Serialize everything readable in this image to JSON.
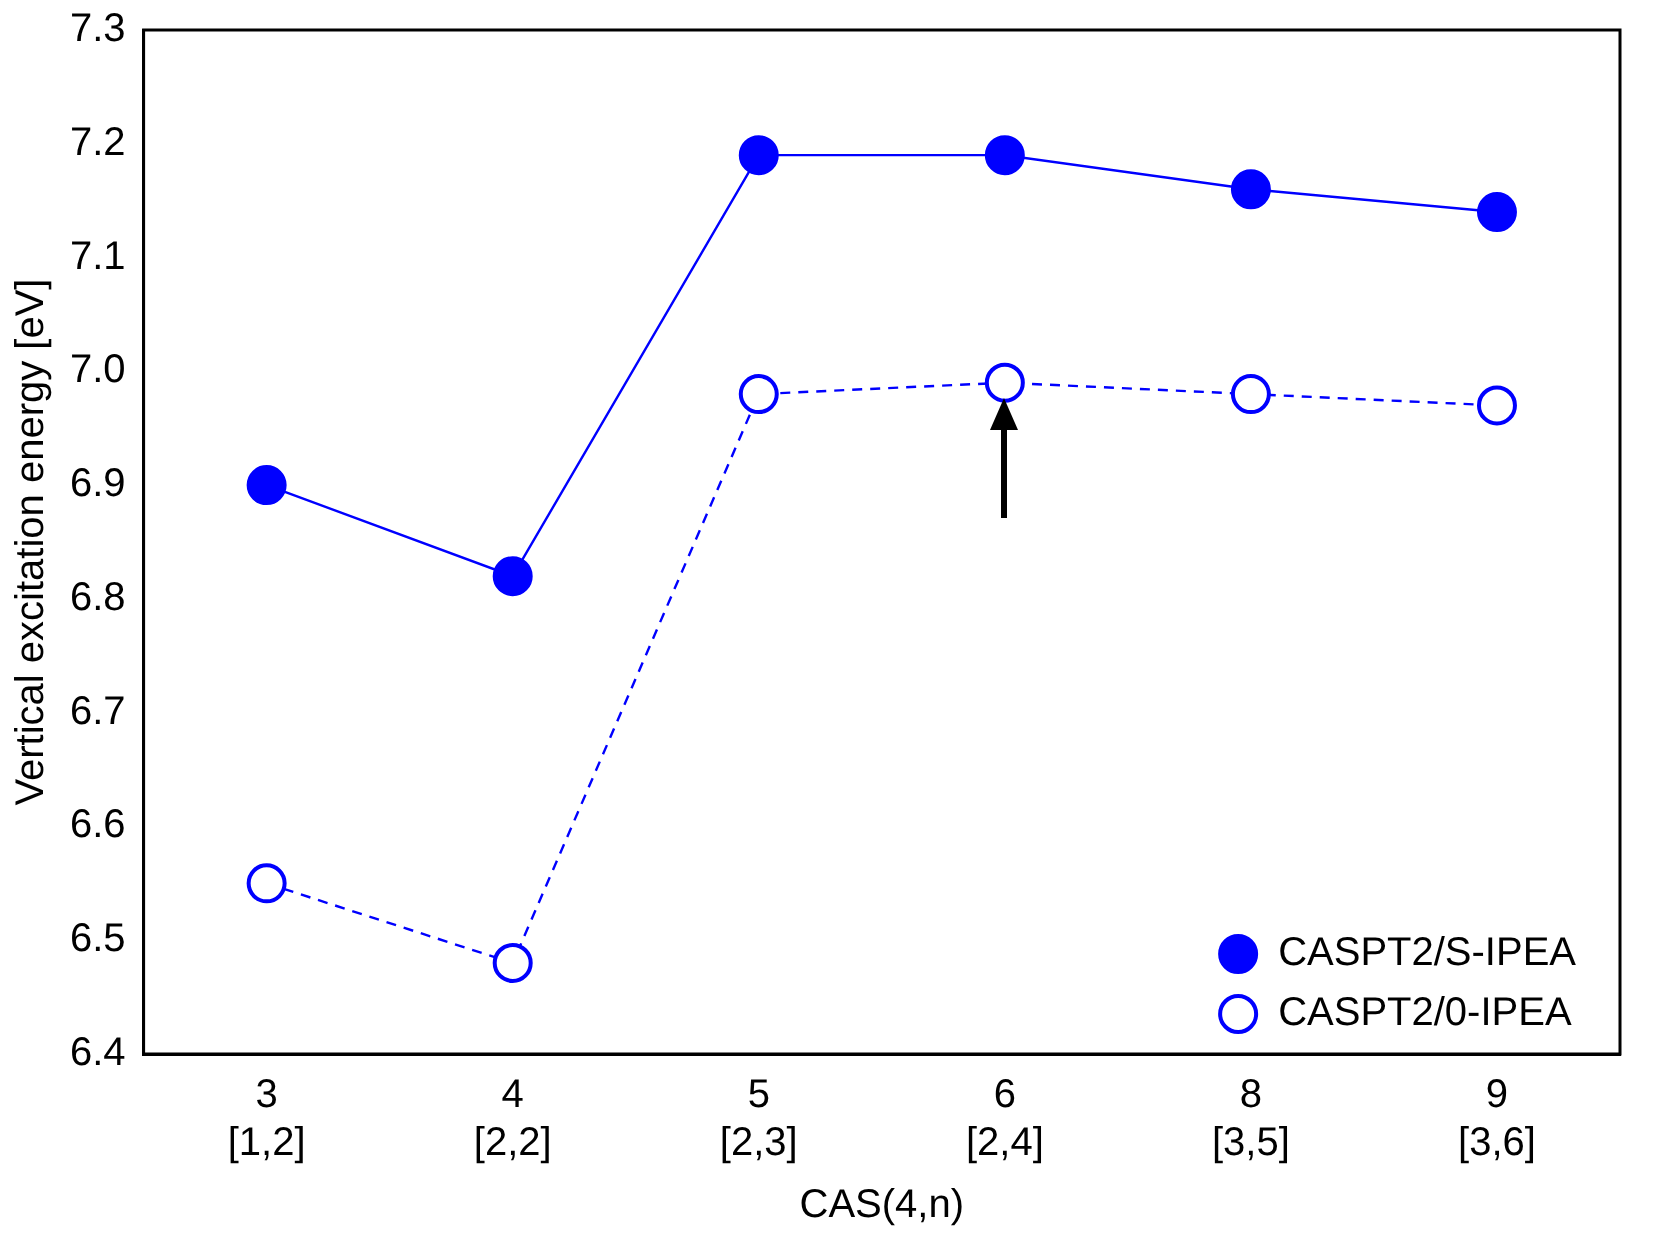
{
  "chart_data": {
    "type": "line",
    "xlabel": "CAS(4,n)",
    "ylabel": "Vertical excitation energy [eV]",
    "categories": [
      "3\n[1,2]",
      "4\n[2,2]",
      "5\n[2,3]",
      "6\n[2,4]",
      "8\n[3,5]",
      "9\n[3,6]"
    ],
    "series": [
      {
        "name": "CASPT2/S-IPEA",
        "color": "#0000ff",
        "values": [
          6.9,
          6.82,
          7.19,
          7.19,
          7.16,
          7.14
        ],
        "line_style": "solid"
      },
      {
        "name": "CASPT2/0-IPEA",
        "color": "#0000ff",
        "values": [
          6.55,
          6.48,
          6.98,
          6.99,
          6.98,
          6.97
        ],
        "line_style": "dashed"
      }
    ],
    "ylim": [
      6.4,
      7.3
    ],
    "yticks": [
      6.4,
      6.5,
      6.6,
      6.7,
      6.8,
      6.9,
      {
        "value": 7.0,
        "label": "7.0"
      },
      7.1,
      7.2,
      7.3
    ],
    "grid": false,
    "legend": "bottom right",
    "marker": "circle"
  }
}
